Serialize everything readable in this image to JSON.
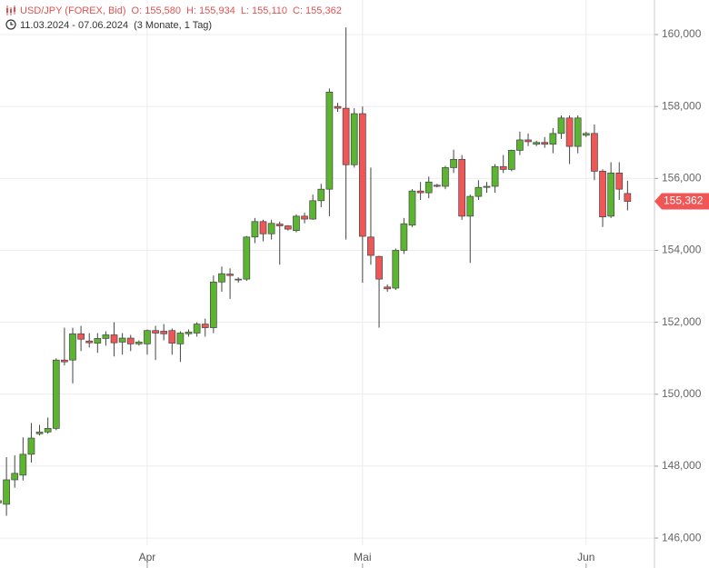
{
  "header": {
    "symbol": "USD/JPY (FOREX, Bid)",
    "open": "O: 155,580",
    "high": "H: 155,934",
    "low": "L: 155,110",
    "close": "C: 155,362",
    "date_range": "11.03.2024 - 07.06.2024",
    "period": "(3 Monate, 1 Tag)"
  },
  "chart_data": {
    "type": "candlestick",
    "categories": [
      null,
      null,
      null,
      null,
      null,
      null,
      null,
      null,
      null,
      null,
      null,
      null,
      null,
      null,
      null,
      null,
      null,
      null,
      "Apr",
      null,
      null,
      null,
      null,
      null,
      null,
      null,
      null,
      null,
      null,
      null,
      null,
      null,
      null,
      null,
      null,
      null,
      null,
      null,
      null,
      null,
      null,
      null,
      null,
      null,
      "Mai",
      null,
      null,
      null,
      null,
      null,
      null,
      null,
      null,
      null,
      null,
      null,
      null,
      null,
      null,
      null,
      null,
      null,
      null,
      null,
      null,
      null,
      null,
      null,
      null,
      null,
      null,
      "Jun",
      null,
      null,
      null,
      null,
      null
    ],
    "open": [
      146980,
      146940,
      147620,
      147750,
      148330,
      148900,
      148950,
      149050,
      150950,
      150950,
      151680,
      151480,
      151420,
      151550,
      151650,
      151450,
      151560,
      151400,
      151400,
      151770,
      151750,
      151770,
      151400,
      151680,
      151700,
      151950,
      151850,
      153120,
      153340,
      153180,
      153200,
      154370,
      154800,
      154460,
      154730,
      154680,
      154550,
      154950,
      154870,
      155380,
      155700,
      158000,
      157950,
      156380,
      157800,
      154370,
      153830,
      152980,
      152950,
      154000,
      154700,
      155650,
      155600,
      155810,
      155780,
      156300,
      156530,
      154950,
      155500,
      155750,
      155780,
      156330,
      156250,
      156780,
      157070,
      156950,
      157000,
      156950,
      157250,
      157680,
      156890,
      157200,
      157250,
      156200,
      154950,
      156150,
      155580
    ],
    "high": [
      147100,
      148250,
      148300,
      148800,
      149200,
      149150,
      149350,
      151000,
      151850,
      151850,
      151900,
      151700,
      151700,
      151750,
      152000,
      151700,
      151650,
      151500,
      151800,
      151900,
      151950,
      151830,
      151750,
      151800,
      152000,
      152100,
      153300,
      153550,
      153500,
      153250,
      154400,
      154900,
      154850,
      154850,
      154800,
      154700,
      155000,
      155050,
      155550,
      155850,
      158500,
      158100,
      160200,
      157950,
      158000,
      156300,
      153850,
      153050,
      154050,
      154900,
      155700,
      155900,
      156050,
      155850,
      156350,
      156800,
      156650,
      155550,
      155950,
      155900,
      156400,
      156650,
      156800,
      157300,
      157250,
      157050,
      157150,
      157400,
      157750,
      157750,
      157750,
      157300,
      157500,
      156250,
      156450,
      156450,
      155934
    ],
    "low": [
      146900,
      146620,
      147400,
      147600,
      148100,
      148850,
      148900,
      149000,
      150800,
      150300,
      151200,
      151300,
      151150,
      151350,
      151050,
      151100,
      151200,
      151350,
      151100,
      150950,
      151500,
      151100,
      150900,
      151600,
      151600,
      151600,
      151700,
      152850,
      152650,
      153100,
      153150,
      154200,
      154250,
      154300,
      153600,
      154550,
      154500,
      154750,
      154850,
      155200,
      154950,
      157850,
      154300,
      156300,
      153100,
      153600,
      151850,
      152850,
      152900,
      153900,
      154650,
      155400,
      155450,
      155750,
      155700,
      156150,
      154850,
      153650,
      155400,
      155600,
      155600,
      156150,
      156200,
      156650,
      156900,
      156900,
      156850,
      156700,
      157100,
      156400,
      156700,
      157150,
      155950,
      154650,
      154900,
      155400,
      155110
    ],
    "close": [
      147040,
      147620,
      147800,
      148330,
      148780,
      148950,
      149050,
      150950,
      150900,
      151680,
      151530,
      151430,
      151550,
      151650,
      151430,
      151560,
      151400,
      151450,
      151770,
      151700,
      151680,
      151420,
      151700,
      151730,
      151950,
      151850,
      153120,
      153350,
      153300,
      153200,
      154370,
      154800,
      154460,
      154750,
      154680,
      154590,
      154950,
      154870,
      155380,
      155700,
      158400,
      157950,
      156380,
      157800,
      154390,
      153860,
      153200,
      152930,
      154000,
      154740,
      155650,
      155600,
      155900,
      155780,
      156300,
      156530,
      154950,
      155500,
      155750,
      155780,
      156330,
      156250,
      156780,
      157070,
      157020,
      157000,
      156950,
      157250,
      157680,
      156890,
      157680,
      157250,
      156200,
      154930,
      156150,
      155700,
      155362
    ],
    "up_color": "#5cb531",
    "down_color": "#f05656",
    "ylim": [
      145800,
      160960
    ],
    "yticks": [
      {
        "value": 146000,
        "label": "146,000"
      },
      {
        "value": 148000,
        "label": "148,000"
      },
      {
        "value": 150000,
        "label": "150,000"
      },
      {
        "value": 152000,
        "label": "152,000"
      },
      {
        "value": 154000,
        "label": "154,000"
      },
      {
        "value": 156000,
        "label": "156,000"
      },
      {
        "value": 158000,
        "label": "158,000"
      },
      {
        "value": 160000,
        "label": "160,000"
      }
    ],
    "last_price": {
      "value": 155362,
      "label": "155,362"
    },
    "grid": true
  }
}
